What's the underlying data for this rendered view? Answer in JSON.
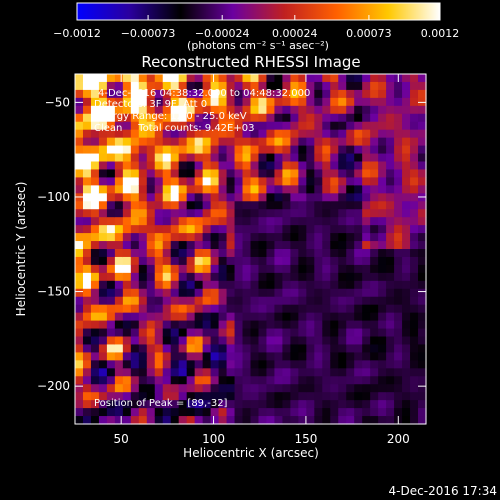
{
  "chart_data": {
    "type": "heatmap",
    "title": "Reconstructed RHESSI Image",
    "xlabel": "Heliocentric X (arcsec)",
    "ylabel": "Heliocentric Y (arcsec)",
    "xlim": [
      25,
      215
    ],
    "ylim": [
      -220,
      -35
    ],
    "x_ticks": [
      50,
      100,
      150,
      200
    ],
    "y_ticks": [
      -50,
      -100,
      -150,
      -200
    ],
    "x_tick_labels": [
      "50",
      "100",
      "150",
      "200"
    ],
    "y_tick_labels": [
      "−50",
      "−100",
      "−150",
      "−200"
    ],
    "grid": false,
    "colorbar": {
      "range": [
        -0.0012,
        0.0012
      ],
      "ticks": [
        -0.0012,
        -0.00073,
        -0.00024,
        0.00024,
        0.00073,
        0.0012
      ],
      "tick_labels": [
        "−0.0012",
        "−0.00073",
        "−0.00024",
        "0.00024",
        "0.00073",
        "0.0012"
      ],
      "unit": "(photons cm⁻² s⁻¹ asec⁻²)",
      "colors": [
        "#0000ff",
        "#2a00a0",
        "#000000",
        "#6a00a0",
        "#c02020",
        "#ff6000",
        "#ffc800",
        "#ffffff"
      ]
    },
    "annotations": {
      "time_range": "4-Dec-2016 04:38:32.000 to 04:48:32.000",
      "detectors": "Detectors: 3F 9F, Att 0",
      "energy": "Energy Range: 12.0 - 25.0 keV",
      "clean": "Clean     Total counts: 9.42E+03",
      "peak": "Position of Peak = [89,-32]"
    },
    "peak_position": [
      89,
      -32
    ],
    "timestamp": "4-Dec-2016 17:34"
  }
}
